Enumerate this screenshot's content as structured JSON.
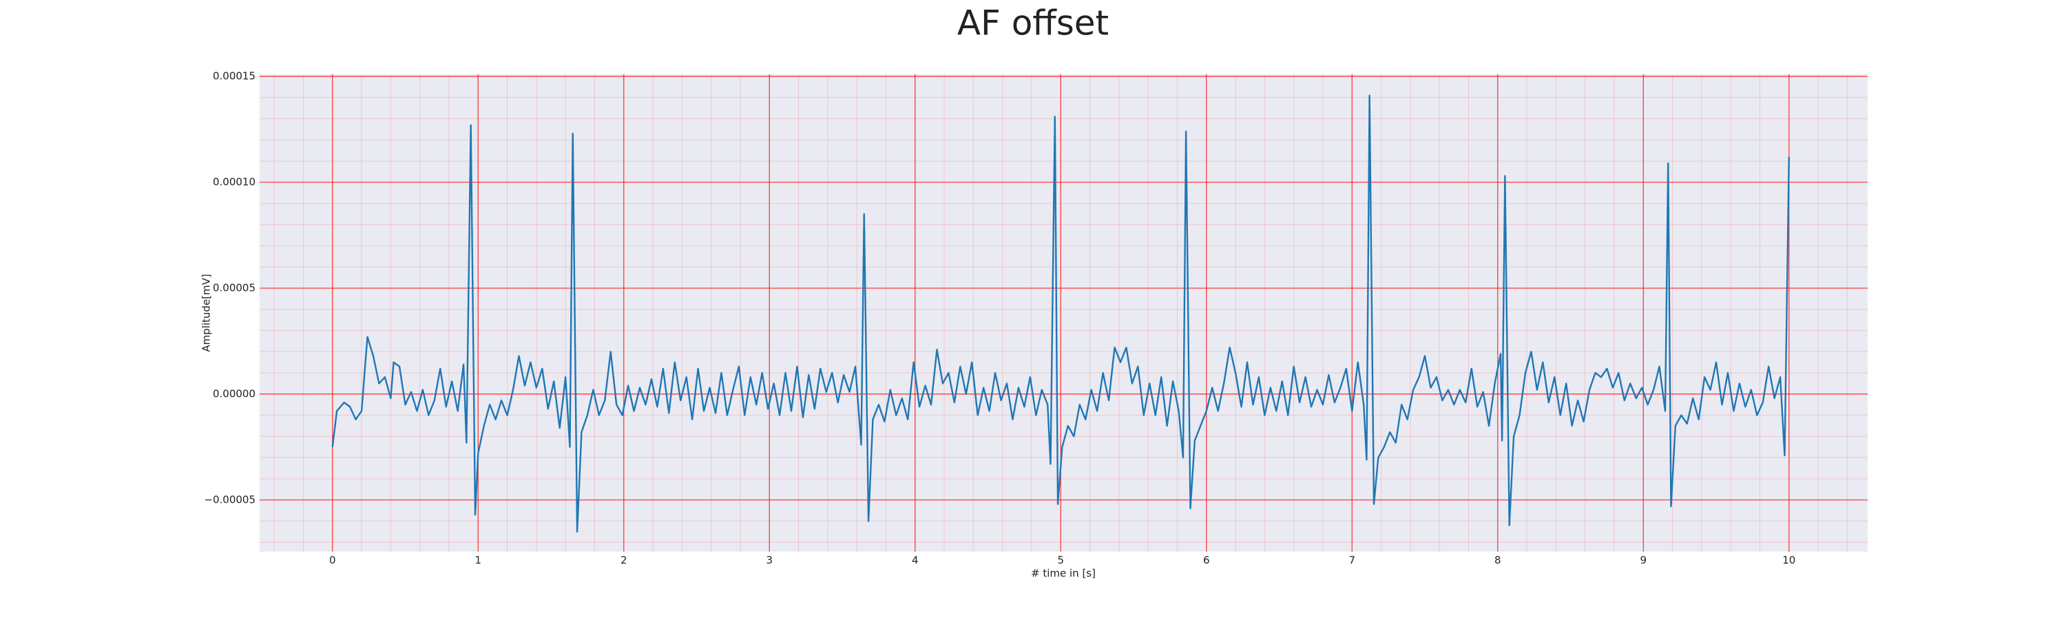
{
  "chart_data": {
    "type": "line",
    "title": "AF offset",
    "xlabel": "# time in [s]",
    "ylabel": "Amplitude[mV]",
    "xlim": [
      -0.5,
      10.54
    ],
    "ylim": [
      -7.44e-05,
      0.000151
    ],
    "xticks": [
      0,
      1,
      2,
      3,
      4,
      5,
      6,
      7,
      8,
      9,
      10
    ],
    "yticks": [
      {
        "value": -5e-05,
        "label": "−0.00005"
      },
      {
        "value": 0,
        "label": "0.00000"
      },
      {
        "value": 5e-05,
        "label": "0.00005"
      },
      {
        "value": 0.0001,
        "label": "0.00010"
      },
      {
        "value": 0.00015,
        "label": "0.00015"
      }
    ],
    "grid": true,
    "grid_color": "#ff0000",
    "minor_grid": true,
    "background": "#eaeaf2",
    "series": [
      {
        "color": "#1f77b4",
        "x": [
          0,
          0.03,
          0.08,
          0.12,
          0.16,
          0.2,
          0.24,
          0.28,
          0.32,
          0.36,
          0.4,
          0.42,
          0.46,
          0.5,
          0.54,
          0.58,
          0.62,
          0.66,
          0.7,
          0.74,
          0.78,
          0.82,
          0.86,
          0.9,
          0.92,
          0.95,
          0.98,
          1.0,
          1.04,
          1.08,
          1.12,
          1.16,
          1.2,
          1.24,
          1.28,
          1.32,
          1.36,
          1.4,
          1.44,
          1.48,
          1.52,
          1.56,
          1.6,
          1.63,
          1.65,
          1.68,
          1.71,
          1.75,
          1.79,
          1.83,
          1.87,
          1.91,
          1.95,
          1.99,
          2.03,
          2.07,
          2.11,
          2.15,
          2.19,
          2.23,
          2.27,
          2.31,
          2.35,
          2.39,
          2.43,
          2.47,
          2.51,
          2.55,
          2.59,
          2.63,
          2.67,
          2.71,
          2.75,
          2.79,
          2.83,
          2.87,
          2.91,
          2.95,
          2.99,
          3.03,
          3.07,
          3.11,
          3.15,
          3.19,
          3.23,
          3.27,
          3.31,
          3.35,
          3.39,
          3.43,
          3.47,
          3.51,
          3.55,
          3.59,
          3.63,
          3.65,
          3.68,
          3.71,
          3.75,
          3.79,
          3.83,
          3.87,
          3.91,
          3.95,
          3.99,
          4.03,
          4.07,
          4.11,
          4.15,
          4.19,
          4.23,
          4.27,
          4.31,
          4.35,
          4.39,
          4.43,
          4.47,
          4.51,
          4.55,
          4.59,
          4.63,
          4.67,
          4.71,
          4.75,
          4.79,
          4.83,
          4.87,
          4.91,
          4.93,
          4.96,
          4.98,
          5.01,
          5.05,
          5.09,
          5.13,
          5.17,
          5.21,
          5.25,
          5.29,
          5.33,
          5.37,
          5.41,
          5.45,
          5.49,
          5.53,
          5.57,
          5.61,
          5.65,
          5.69,
          5.73,
          5.77,
          5.81,
          5.84,
          5.86,
          5.89,
          5.92,
          5.96,
          6.0,
          6.04,
          6.08,
          6.12,
          6.16,
          6.2,
          6.24,
          6.28,
          6.32,
          6.36,
          6.4,
          6.44,
          6.48,
          6.52,
          6.56,
          6.6,
          6.64,
          6.68,
          6.72,
          6.76,
          6.8,
          6.84,
          6.88,
          6.92,
          6.96,
          7.0,
          7.04,
          7.08,
          7.1,
          7.12,
          7.15,
          7.18,
          7.22,
          7.26,
          7.3,
          7.34,
          7.38,
          7.42,
          7.46,
          7.5,
          7.54,
          7.58,
          7.62,
          7.66,
          7.7,
          7.74,
          7.78,
          7.82,
          7.86,
          7.9,
          7.94,
          7.98,
          8.02,
          8.03,
          8.05,
          8.08,
          8.11,
          8.15,
          8.19,
          8.23,
          8.27,
          8.31,
          8.35,
          8.39,
          8.43,
          8.47,
          8.51,
          8.55,
          8.59,
          8.63,
          8.67,
          8.71,
          8.75,
          8.79,
          8.83,
          8.87,
          8.91,
          8.95,
          8.99,
          9.03,
          9.07,
          9.11,
          9.15,
          9.17,
          9.19,
          9.22,
          9.26,
          9.3,
          9.34,
          9.38,
          9.42,
          9.46,
          9.5,
          9.54,
          9.58,
          9.62,
          9.66,
          9.7,
          9.74,
          9.78,
          9.82,
          9.86,
          9.9,
          9.94,
          9.97,
          10.0
        ],
        "values": [
          -2.5e-05,
          -8e-06,
          -4e-06,
          -6e-06,
          -1.2e-05,
          -8e-06,
          2.7e-05,
          1.8e-05,
          5e-06,
          8e-06,
          -2e-06,
          1.5e-05,
          1.3e-05,
          -5e-06,
          1e-06,
          -8e-06,
          2e-06,
          -1e-05,
          -3e-06,
          1.2e-05,
          -6e-06,
          6e-06,
          -8e-06,
          1.4e-05,
          -2.3e-05,
          0.000127,
          -5.7e-05,
          -2.8e-05,
          -1.5e-05,
          -5e-06,
          -1.2e-05,
          -3e-06,
          -1e-05,
          2e-06,
          1.8e-05,
          4e-06,
          1.5e-05,
          3e-06,
          1.2e-05,
          -7e-06,
          6e-06,
          -1.6e-05,
          8e-06,
          -2.5e-05,
          0.000123,
          -6.5e-05,
          -1.8e-05,
          -1e-05,
          2e-06,
          -1e-05,
          -3e-06,
          2e-05,
          -5e-06,
          -1e-05,
          4e-06,
          -8e-06,
          3e-06,
          -5e-06,
          7e-06,
          -6e-06,
          1.2e-05,
          -9e-06,
          1.5e-05,
          -3e-06,
          8e-06,
          -1.2e-05,
          1.2e-05,
          -8e-06,
          3e-06,
          -9e-06,
          1e-05,
          -1e-05,
          2e-06,
          1.3e-05,
          -1e-05,
          8e-06,
          -5e-06,
          1e-05,
          -7e-06,
          5e-06,
          -1e-05,
          1e-05,
          -8e-06,
          1.3e-05,
          -1.1e-05,
          9e-06,
          -7e-06,
          1.2e-05,
          1e-06,
          1e-05,
          -4e-06,
          9e-06,
          1e-06,
          1.3e-05,
          -2.4e-05,
          8.5e-05,
          -6e-05,
          -1.2e-05,
          -5e-06,
          -1.3e-05,
          2e-06,
          -1e-05,
          -2e-06,
          -1.2e-05,
          1.5e-05,
          -6e-06,
          4e-06,
          -5e-06,
          2.1e-05,
          5e-06,
          1e-05,
          -4e-06,
          1.3e-05,
          0,
          1.5e-05,
          -1e-05,
          3e-06,
          -8e-06,
          1e-05,
          -3e-06,
          5e-06,
          -1.2e-05,
          3e-06,
          -6e-06,
          8e-06,
          -1e-05,
          2e-06,
          -5e-06,
          -3.3e-05,
          0.000131,
          -5.2e-05,
          -2.5e-05,
          -1.5e-05,
          -2e-05,
          -5e-06,
          -1.2e-05,
          2e-06,
          -8e-06,
          1e-05,
          -3e-06,
          2.2e-05,
          1.5e-05,
          2.2e-05,
          5e-06,
          1.3e-05,
          -1e-05,
          5e-06,
          -1e-05,
          8e-06,
          -1.5e-05,
          6e-06,
          -8e-06,
          -3e-05,
          0.000124,
          -5.4e-05,
          -2.2e-05,
          -1.5e-05,
          -8e-06,
          3e-06,
          -8e-06,
          5e-06,
          2.2e-05,
          1e-05,
          -6e-06,
          1.5e-05,
          -5e-06,
          8e-06,
          -1e-05,
          3e-06,
          -8e-06,
          6e-06,
          -1e-05,
          1.3e-05,
          -4e-06,
          8e-06,
          -6e-06,
          2e-06,
          -5e-06,
          9e-06,
          -4e-06,
          3e-06,
          1.2e-05,
          -8e-06,
          1.5e-05,
          -5e-06,
          -3.1e-05,
          0.000141,
          -5.2e-05,
          -3e-05,
          -2.5e-05,
          -1.8e-05,
          -2.3e-05,
          -5e-06,
          -1.2e-05,
          2e-06,
          8e-06,
          1.8e-05,
          3e-06,
          8e-06,
          -3e-06,
          2e-06,
          -5e-06,
          2e-06,
          -4e-06,
          1.2e-05,
          -6e-06,
          1e-06,
          -1.5e-05,
          5e-06,
          1.9e-05,
          -2.2e-05,
          0.000103,
          -6.2e-05,
          -2e-05,
          -1e-05,
          1e-05,
          2e-05,
          2e-06,
          1.5e-05,
          -4e-06,
          8e-06,
          -1e-05,
          5e-06,
          -1.5e-05,
          -3e-06,
          -1.3e-05,
          2e-06,
          1e-05,
          8e-06,
          1.2e-05,
          3e-06,
          1e-05,
          -3e-06,
          5e-06,
          -2e-06,
          3e-06,
          -5e-06,
          2e-06,
          1.3e-05,
          -8e-06,
          0.000109,
          -5.3e-05,
          -1.5e-05,
          -1e-05,
          -1.4e-05,
          -2e-06,
          -1.2e-05,
          8e-06,
          2e-06,
          1.5e-05,
          -5e-06,
          1e-05,
          -8e-06,
          5e-06,
          -6e-06,
          2e-06,
          -1e-05,
          -4e-06,
          1.3e-05,
          -2e-06,
          8e-06,
          -2.9e-05,
          0.000112
        ]
      }
    ]
  }
}
